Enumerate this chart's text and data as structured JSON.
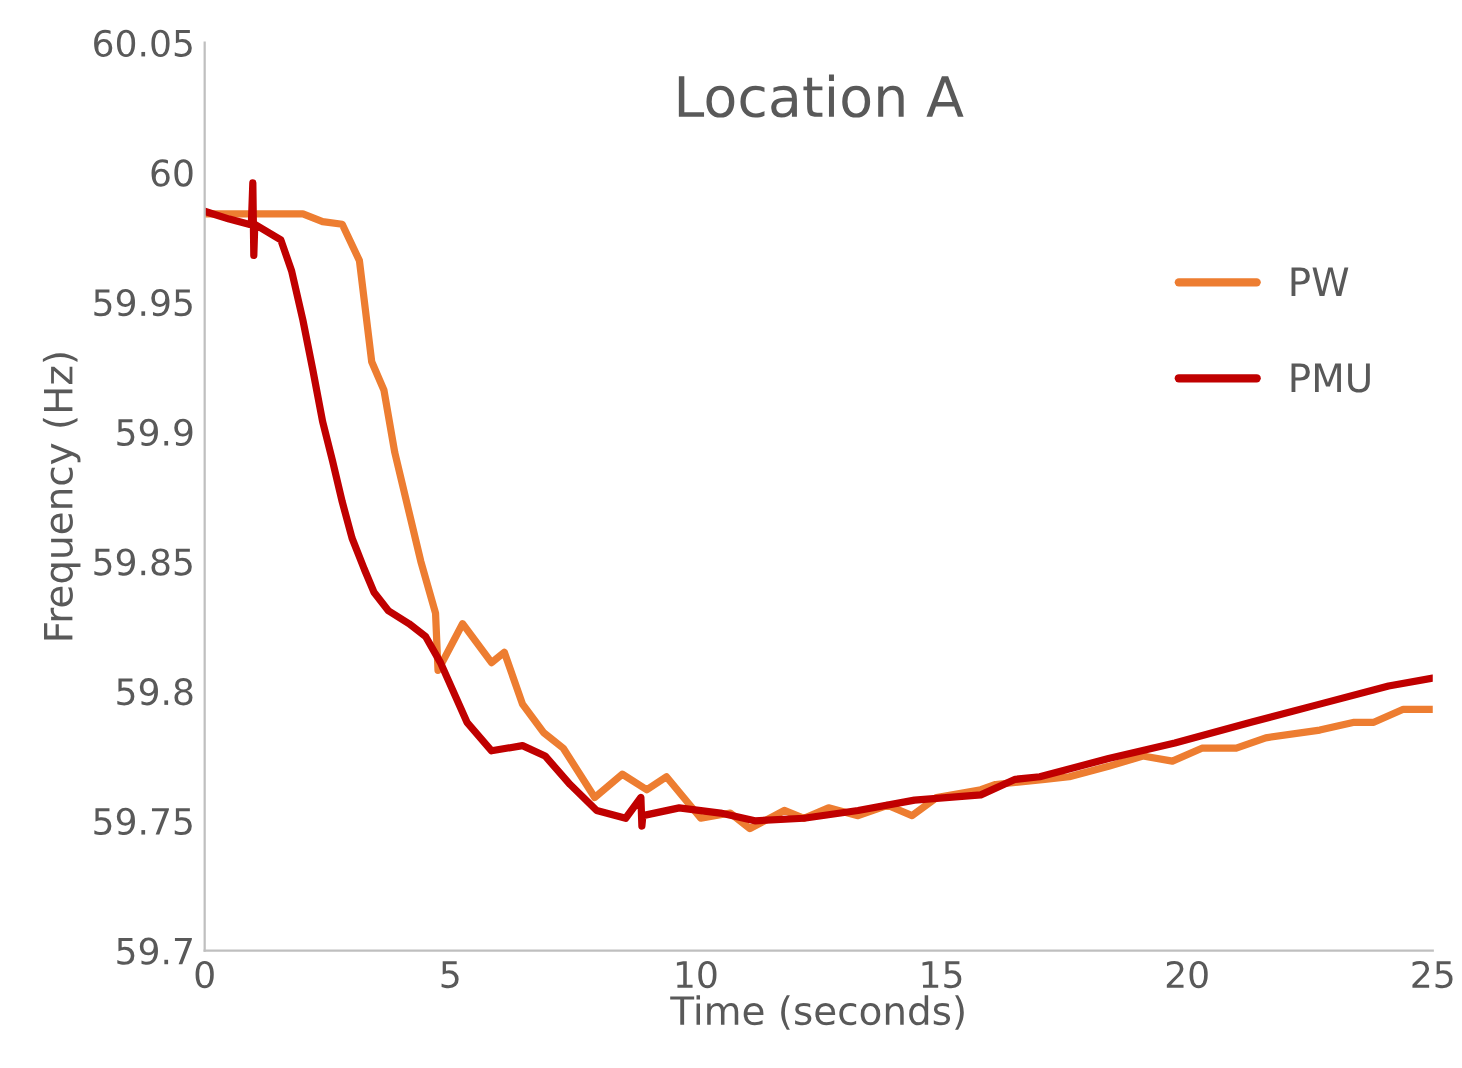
{
  "chart_data": {
    "type": "line",
    "title": "Location A",
    "xlabel": "Time (seconds)",
    "ylabel": "Frequency (Hz)",
    "xlim": [
      0,
      25
    ],
    "xticks": [
      0,
      5,
      10,
      15,
      20,
      25
    ],
    "ylim": [
      59.7,
      60.05
    ],
    "yticks": [
      {
        "value": 59.7,
        "label": "59.7"
      },
      {
        "value": 59.75,
        "label": "59.75"
      },
      {
        "value": 59.8,
        "label": "59.8"
      },
      {
        "value": 59.85,
        "label": "59.85"
      },
      {
        "value": 59.9,
        "label": "59.9"
      },
      {
        "value": 59.95,
        "label": "59.95"
      },
      {
        "value": 60,
        "label": "60"
      },
      {
        "value": 60.05,
        "label": "60.05"
      }
    ],
    "grid": false,
    "legend": "right",
    "marker": "none",
    "line_style": "solid",
    "series": [
      {
        "name": "PW",
        "color": "#ed7d31",
        "x": [
          0,
          2.0,
          2.4,
          2.8,
          3.15,
          3.4,
          3.65,
          3.87,
          4.16,
          4.4,
          4.7,
          4.75,
          5.25,
          5.84,
          6.1,
          6.47,
          6.9,
          7.3,
          7.94,
          8.5,
          9.0,
          9.4,
          10.1,
          10.7,
          11.1,
          11.8,
          12.2,
          12.7,
          13.3,
          13.9,
          14.4,
          14.9,
          15.8,
          16.1,
          17.1,
          17.6,
          18.4,
          19.1,
          19.7,
          20.3,
          21.0,
          21.6,
          22.7,
          23.4,
          23.8,
          24.4,
          25
        ],
        "values": [
          59.984,
          59.984,
          59.981,
          59.98,
          59.966,
          59.927,
          59.916,
          59.892,
          59.869,
          59.85,
          59.83,
          59.808,
          59.826,
          59.811,
          59.815,
          59.795,
          59.784,
          59.778,
          59.759,
          59.768,
          59.762,
          59.767,
          59.751,
          59.753,
          59.747,
          59.754,
          59.751,
          59.755,
          59.752,
          59.756,
          59.752,
          59.759,
          59.762,
          59.764,
          59.766,
          59.767,
          59.771,
          59.775,
          59.773,
          59.778,
          59.778,
          59.782,
          59.785,
          59.788,
          59.788,
          59.793,
          59.793
        ]
      },
      {
        "name": "PMU",
        "color": "#c00000",
        "x": [
          0,
          0.5,
          0.9,
          0.95,
          0.98,
          1.0,
          1.02,
          1.55,
          1.77,
          2.0,
          2.2,
          2.4,
          2.6,
          2.8,
          3.0,
          3.25,
          3.45,
          3.74,
          4.16,
          4.5,
          4.8,
          5.34,
          5.84,
          6.47,
          6.93,
          7.44,
          7.98,
          8.57,
          8.88,
          8.9,
          8.92,
          9.66,
          10.5,
          11.2,
          12.2,
          13.3,
          14.45,
          15.8,
          16.5,
          17.0,
          18.4,
          19.75,
          21.3,
          22.7,
          24.1,
          25
        ],
        "values": [
          59.985,
          59.982,
          59.98,
          59.98,
          59.996,
          59.968,
          59.98,
          59.974,
          59.962,
          59.943,
          59.924,
          59.904,
          59.889,
          59.873,
          59.859,
          59.847,
          59.838,
          59.831,
          59.826,
          59.821,
          59.811,
          59.788,
          59.777,
          59.779,
          59.775,
          59.764,
          59.754,
          59.751,
          59.759,
          59.748,
          59.752,
          59.755,
          59.753,
          59.75,
          59.751,
          59.754,
          59.758,
          59.76,
          59.766,
          59.767,
          59.774,
          59.78,
          59.788,
          59.795,
          59.802,
          59.805
        ]
      }
    ]
  }
}
